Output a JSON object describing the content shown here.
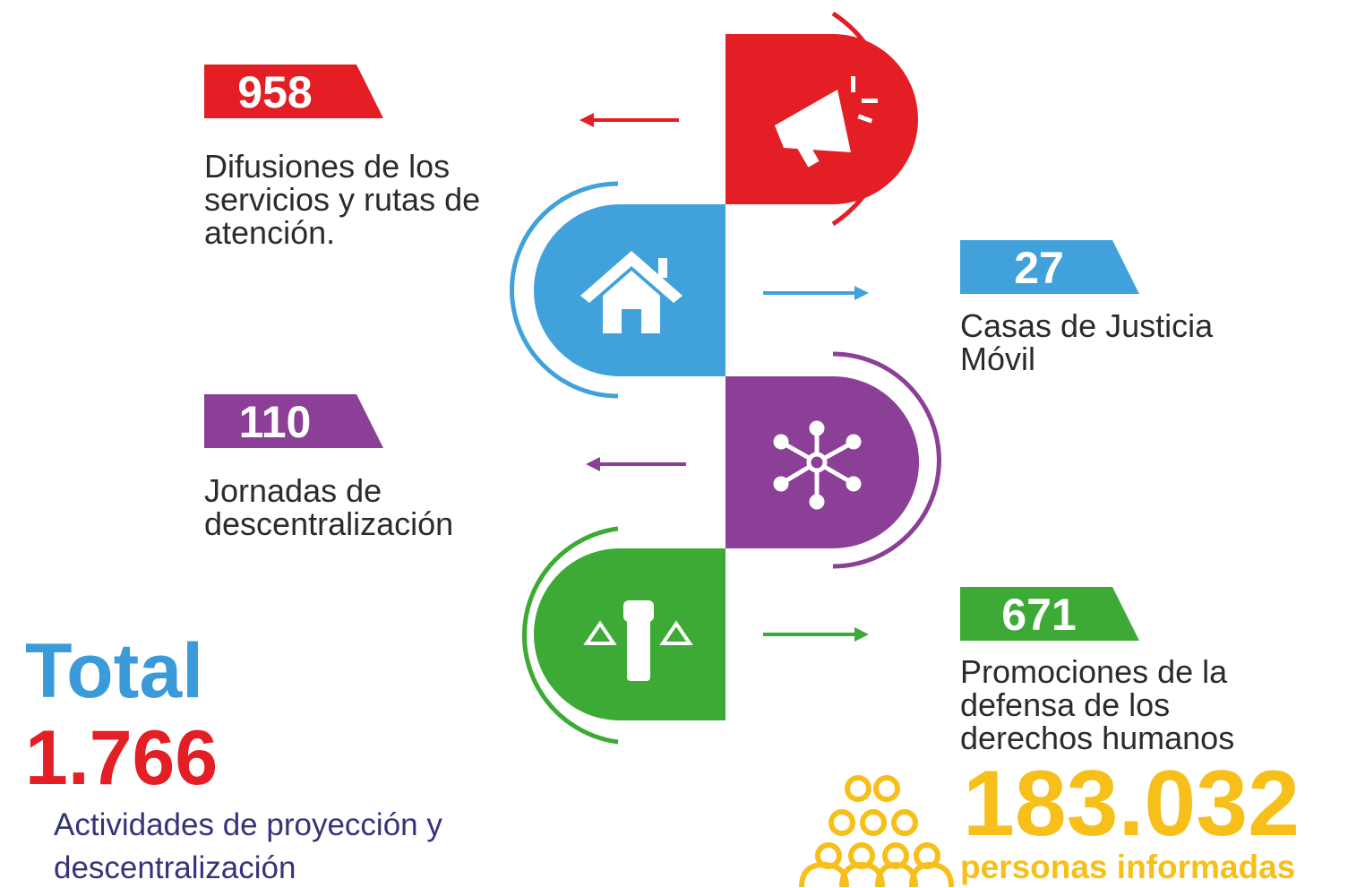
{
  "items": [
    {
      "number": "958",
      "lines": [
        "Difusiones de los",
        "servicios y  rutas de",
        "atención."
      ]
    },
    {
      "number": "27",
      "lines": [
        "Casas de Justicia",
        "Móvil"
      ]
    },
    {
      "number": "110",
      "lines": [
        "Jornadas de",
        "descentralización"
      ]
    },
    {
      "number": "671",
      "lines": [
        "Promociones de la",
        "defensa de los",
        "derechos humanos"
      ]
    }
  ],
  "total": {
    "title": "Total",
    "number": "1.766",
    "lines": [
      "Actividades de proyección y",
      "descentralización"
    ]
  },
  "people": {
    "number": "183.032",
    "label": "personas informadas"
  }
}
